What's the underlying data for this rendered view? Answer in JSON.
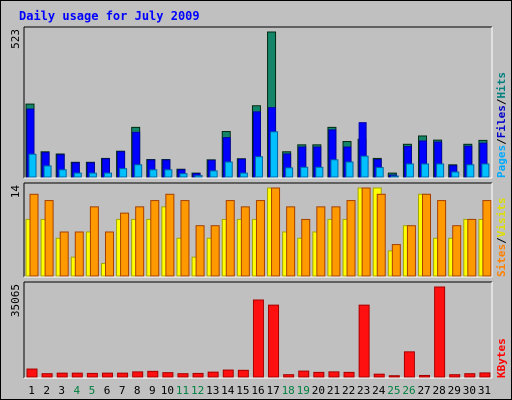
{
  "title": "Daily usage for July 2009",
  "chart_data": [
    {
      "type": "bar",
      "panel": "pages-files-hits",
      "ymax_label": "523",
      "ylim": [
        0,
        523
      ],
      "side_labels": [
        {
          "text": "Pages",
          "color": "#00aaff"
        },
        {
          "text": "/",
          "color": "#000000"
        },
        {
          "text": "Files",
          "color": "#0000cc"
        },
        {
          "text": "/",
          "color": "#000000"
        },
        {
          "text": "Hits",
          "color": "#008080"
        }
      ],
      "categories": [
        "1",
        "2",
        "3",
        "4",
        "5",
        "6",
        "7",
        "8",
        "9",
        "10",
        "11",
        "12",
        "13",
        "14",
        "15",
        "16",
        "17",
        "18",
        "19",
        "20",
        "21",
        "22",
        "23",
        "24",
        "25",
        "26",
        "27",
        "28",
        "29",
        "30",
        "31"
      ],
      "series": [
        {
          "name": "Hits",
          "color": "#15856a",
          "values": [
            263,
            91,
            83,
            53,
            53,
            67,
            93,
            179,
            63,
            63,
            28,
            14,
            62,
            164,
            66,
            257,
            523,
            91,
            116,
            116,
            179,
            128,
            136,
            67,
            14,
            118,
            148,
            133,
            44,
            118,
            132
          ]
        },
        {
          "name": "Files",
          "color": "#0000ff",
          "values": [
            245,
            88,
            80,
            51,
            51,
            65,
            91,
            161,
            61,
            61,
            26,
            12,
            60,
            142,
            64,
            235,
            250,
            83,
            108,
            108,
            170,
            108,
            196,
            63,
            7,
            110,
            130,
            126,
            41,
            111,
            122
          ]
        },
        {
          "name": "Pages",
          "color": "#00c0ff",
          "values": [
            82,
            40,
            26,
            14,
            14,
            14,
            30,
            44,
            26,
            26,
            12,
            5,
            22,
            54,
            14,
            73,
            163,
            33,
            35,
            35,
            62,
            54,
            75,
            34,
            3,
            47,
            47,
            47,
            18,
            44,
            47
          ]
        }
      ]
    },
    {
      "type": "bar",
      "panel": "sites-visits",
      "ymax_label": "14",
      "ylim": [
        0,
        14
      ],
      "side_labels": [
        {
          "text": "Sites",
          "color": "#ff8000"
        },
        {
          "text": "/",
          "color": "#000000"
        },
        {
          "text": "Visits",
          "color": "#e0e000"
        }
      ],
      "categories": [
        "1",
        "2",
        "3",
        "4",
        "5",
        "6",
        "7",
        "8",
        "9",
        "10",
        "11",
        "12",
        "13",
        "14",
        "15",
        "16",
        "17",
        "18",
        "19",
        "20",
        "21",
        "22",
        "23",
        "24",
        "25",
        "26",
        "27",
        "28",
        "29",
        "30",
        "31"
      ],
      "series": [
        {
          "name": "Visits",
          "color": "#ffff00",
          "values": [
            9,
            9,
            6,
            3,
            7,
            2,
            9,
            9,
            9,
            11,
            6,
            3,
            6,
            9,
            9,
            9,
            14,
            7,
            6,
            7,
            9,
            9,
            14,
            14,
            4,
            8,
            13,
            6,
            6,
            9,
            9
          ]
        },
        {
          "name": "Sites",
          "color": "#ff9900",
          "values": [
            13,
            12,
            7,
            7,
            11,
            7,
            10,
            11,
            12,
            13,
            12,
            8,
            8,
            12,
            11,
            12,
            14,
            11,
            9,
            11,
            11,
            12,
            14,
            13,
            5,
            8,
            13,
            12,
            8,
            9,
            12
          ]
        }
      ]
    },
    {
      "type": "bar",
      "panel": "kbytes",
      "ymax_label": "35065",
      "ylim": [
        0,
        35065
      ],
      "side_labels": [
        {
          "text": "KBytes",
          "color": "#ff0000"
        }
      ],
      "categories": [
        "1",
        "2",
        "3",
        "4",
        "5",
        "6",
        "7",
        "8",
        "9",
        "10",
        "11",
        "12",
        "13",
        "14",
        "15",
        "16",
        "17",
        "18",
        "19",
        "20",
        "21",
        "22",
        "23",
        "24",
        "25",
        "26",
        "27",
        "28",
        "29",
        "30",
        "31"
      ],
      "series": [
        {
          "name": "KBytes",
          "color": "#ff1010",
          "values": [
            3100,
            1300,
            1500,
            1500,
            1400,
            1500,
            1500,
            2000,
            2200,
            1700,
            1300,
            1400,
            1900,
            2700,
            2600,
            30000,
            28000,
            900,
            2300,
            1800,
            2000,
            1800,
            28000,
            1100,
            500,
            9800,
            600,
            35065,
            900,
            1300,
            1600
          ]
        }
      ]
    }
  ],
  "day_label_colors": {
    "weekday": "#000000",
    "weekend": "#008040",
    "weekend_days": [
      "4",
      "5",
      "11",
      "12",
      "18",
      "19",
      "25",
      "26"
    ]
  }
}
